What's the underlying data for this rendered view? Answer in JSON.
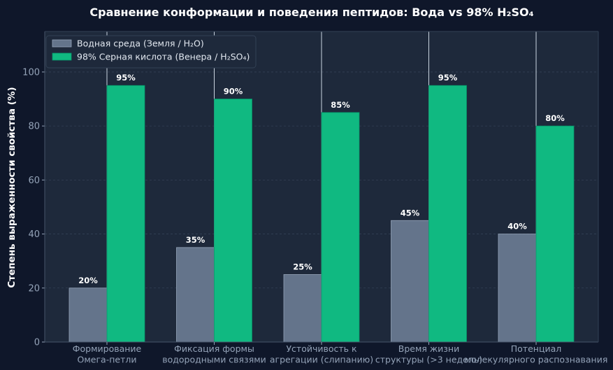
{
  "chart_data": {
    "type": "bar",
    "title": "Сравнение конформации и поведения пептидов: Вода vs 98% H₂SO₄",
    "xlabel": "",
    "ylabel": "Степень выраженности свойства (%)",
    "ylim": [
      0,
      115
    ],
    "yticks": [
      "0",
      "20",
      "40",
      "60",
      "80",
      "100"
    ],
    "grid": true,
    "legend_position": "top-left",
    "categories": [
      [
        "Формирование",
        "Омега-петли"
      ],
      [
        "Фиксация формы",
        "водородными связями"
      ],
      [
        "Устойчивость к",
        "агрегации (слипанию)"
      ],
      [
        "Время жизни",
        "структуры (>3 недель)"
      ],
      [
        "Потенциал",
        "молекулярного распознавания"
      ]
    ],
    "series": [
      {
        "name": "Водная среда (Земля / H₂O)",
        "color": "#64748b",
        "values": [
          20,
          35,
          25,
          45,
          40
        ],
        "labels": [
          "20%",
          "35%",
          "25%",
          "45%",
          "40%"
        ]
      },
      {
        "name": "98% Серная кислота (Венера / H₂SO₄)",
        "color": "#10b981",
        "values": [
          95,
          90,
          85,
          95,
          80
        ],
        "labels": [
          "95%",
          "90%",
          "85%",
          "95%",
          "80%"
        ]
      }
    ]
  }
}
